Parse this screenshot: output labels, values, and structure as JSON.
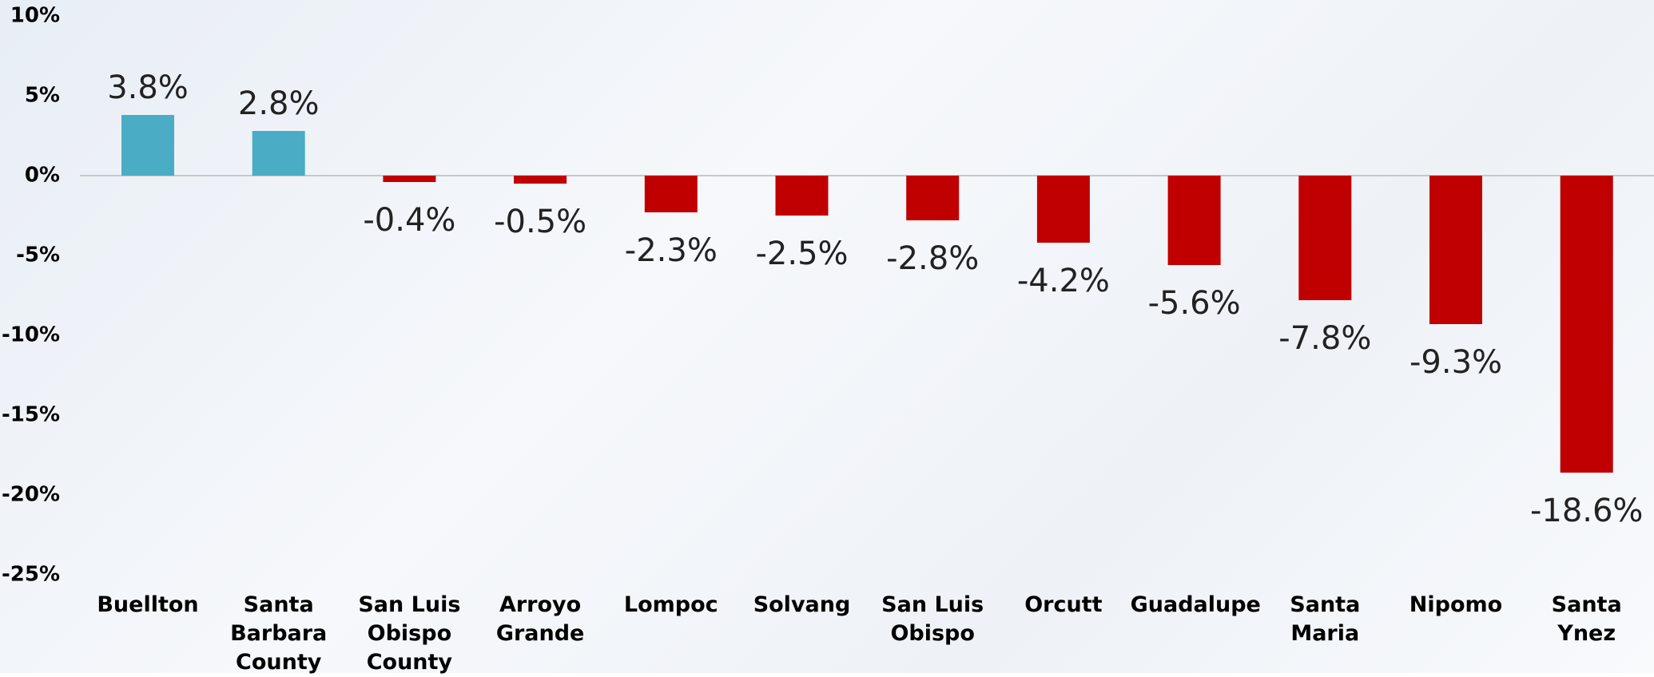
{
  "chart_data": {
    "type": "bar",
    "categories": [
      "Buellton",
      "Santa Barbara County",
      "San Luis Obispo County",
      "Arroyo Grande",
      "Lompoc",
      "Solvang",
      "San Luis Obispo",
      "Orcutt",
      "Guadalupe",
      "Santa Maria",
      "Nipomo",
      "Santa Ynez"
    ],
    "values": [
      3.8,
      2.8,
      -0.4,
      -0.5,
      -2.3,
      -2.5,
      -2.8,
      -4.2,
      -5.6,
      -7.8,
      -9.3,
      -18.6
    ],
    "value_labels": [
      "3.8%",
      "2.8%",
      "-0.4%",
      "-0.5%",
      "-2.3%",
      "-2.5%",
      "-2.8%",
      "-4.2%",
      "-5.6%",
      "-7.8%",
      "-9.3%",
      "-18.6%"
    ],
    "positive_color": "#4bacc6",
    "negative_color": "#c00000",
    "ylim": [
      -25,
      10
    ],
    "yticks": [
      {
        "value": 10,
        "label": "10%"
      },
      {
        "value": 5,
        "label": "5%"
      },
      {
        "value": 0,
        "label": "0%"
      },
      {
        "value": -5,
        "label": "-5%"
      },
      {
        "value": -10,
        "label": "-10%"
      },
      {
        "value": -15,
        "label": "-15%"
      },
      {
        "value": -20,
        "label": "-20%"
      },
      {
        "value": -25,
        "label": "-25%"
      }
    ]
  }
}
